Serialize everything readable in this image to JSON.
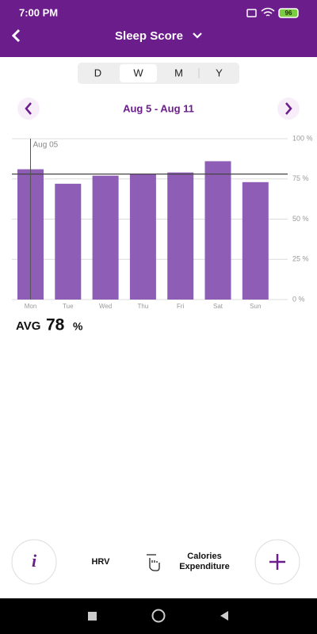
{
  "status_bar": {
    "time": "7:00 PM",
    "battery": "96"
  },
  "header": {
    "title": "Sleep Score"
  },
  "period_tabs": {
    "options": [
      "D",
      "W",
      "M",
      "Y"
    ],
    "selected_index": 1
  },
  "date_range": "Aug 5 - Aug 11",
  "chart_data": {
    "type": "bar",
    "categories": [
      "Mon",
      "Tue",
      "Wed",
      "Thu",
      "Fri",
      "Sat",
      "Sun"
    ],
    "values": [
      81,
      72,
      77,
      78,
      79,
      86,
      73
    ],
    "color": "#8e5db5",
    "ylim": [
      0,
      100
    ],
    "yticks": [
      {
        "value": 0,
        "label": "0 %"
      },
      {
        "value": 25,
        "label": "25 %"
      },
      {
        "value": 50,
        "label": "50 %"
      },
      {
        "value": 75,
        "label": "75 %"
      },
      {
        "value": 100,
        "label": "100 %"
      }
    ],
    "grid": true,
    "cursor_label": "Aug 05"
  },
  "avg": {
    "label": "AVG",
    "value": 78,
    "unit": "%"
  },
  "bottom_bar": {
    "left": "HRV",
    "right": [
      "Calories",
      "Expenditure"
    ]
  }
}
